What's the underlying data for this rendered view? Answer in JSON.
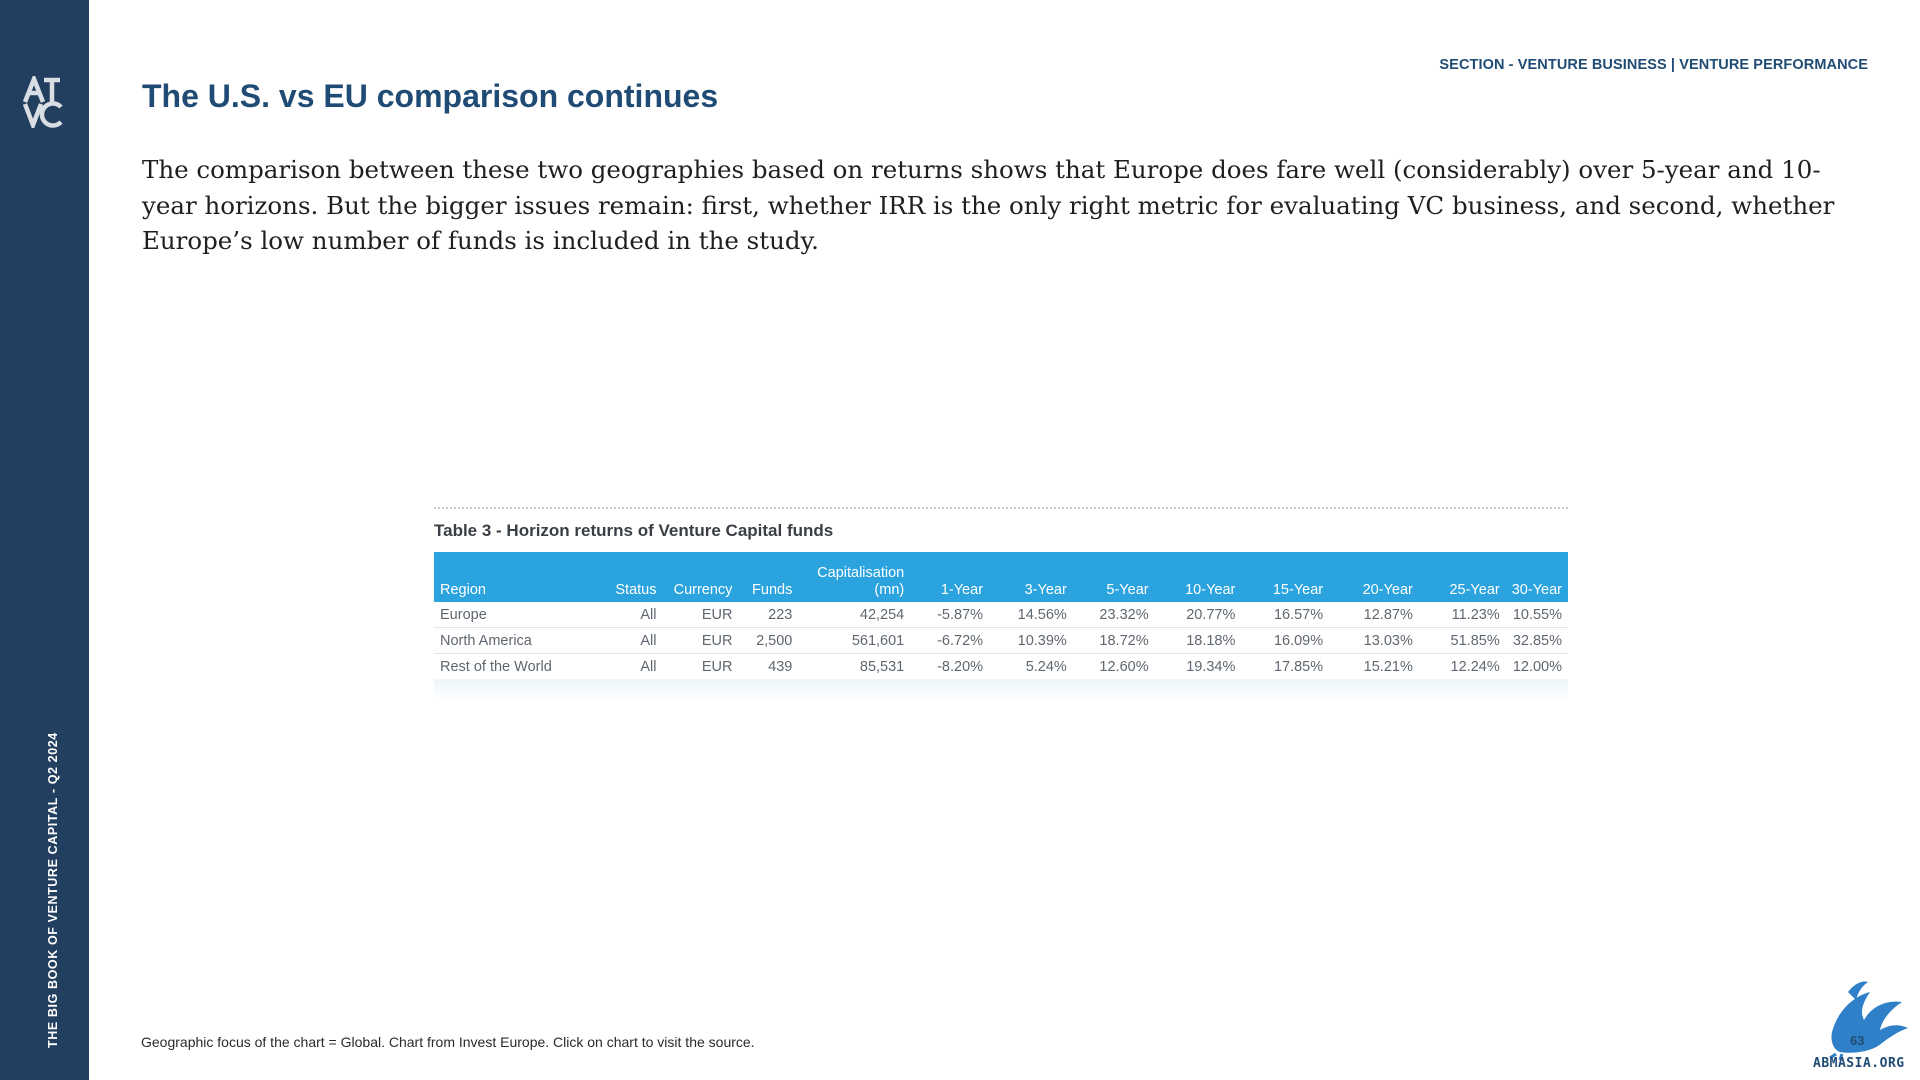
{
  "sidebar": {
    "logo_text": "ATVC",
    "vertical_label": "THE BIG BOOK OF VENTURE CAPITAL - Q2 2024"
  },
  "header": {
    "section_label": "SECTION - VENTURE BUSINESS | VENTURE PERFORMANCE",
    "title": "The U.S. vs EU comparison continues"
  },
  "body": {
    "paragraph": "The comparison between these two geographies based on returns shows that Europe does fare well (considerably) over 5-year and 10-year horizons. But the bigger issues remain: first, whether IRR is the only right metric for evaluating VC business, and second, whether Europe’s low number of funds is included in the study."
  },
  "table": {
    "title": "Table 3 - Horizon returns of Venture Capital funds",
    "columns": [
      {
        "label": "Region",
        "sub": ""
      },
      {
        "label": "Status",
        "sub": ""
      },
      {
        "label": "Currency",
        "sub": ""
      },
      {
        "label": "Funds",
        "sub": ""
      },
      {
        "label": "Capitalisation",
        "sub": "(mn)"
      },
      {
        "label": "1-Year",
        "sub": ""
      },
      {
        "label": "3-Year",
        "sub": ""
      },
      {
        "label": "5-Year",
        "sub": ""
      },
      {
        "label": "10-Year",
        "sub": ""
      },
      {
        "label": "15-Year",
        "sub": ""
      },
      {
        "label": "20-Year",
        "sub": ""
      },
      {
        "label": "25-Year",
        "sub": ""
      },
      {
        "label": "30-Year",
        "sub": ""
      }
    ],
    "rows": [
      [
        "Europe",
        "All",
        "EUR",
        "223",
        "42,254",
        "-5.87%",
        "14.56%",
        "23.32%",
        "20.77%",
        "16.57%",
        "12.87%",
        "11.23%",
        "10.55%"
      ],
      [
        "North America",
        "All",
        "EUR",
        "2,500",
        "561,601",
        "-6.72%",
        "10.39%",
        "18.72%",
        "18.18%",
        "16.09%",
        "13.03%",
        "51.85%",
        "32.85%"
      ],
      [
        "Rest of the World",
        "All",
        "EUR",
        "439",
        "85,531",
        "-8.20%",
        "5.24%",
        "12.60%",
        "19.34%",
        "17.85%",
        "15.21%",
        "12.24%",
        "12.00%"
      ]
    ]
  },
  "footer": {
    "footnote": "Geographic focus of the chart = Global. Chart from Invest Europe. Click on chart to visit the source.",
    "page_number": "63",
    "site": "ABMASIA.ORG"
  },
  "colors": {
    "sidebar": "#233f5f",
    "title": "#1f4b74",
    "table_header": "#2ba3de"
  }
}
